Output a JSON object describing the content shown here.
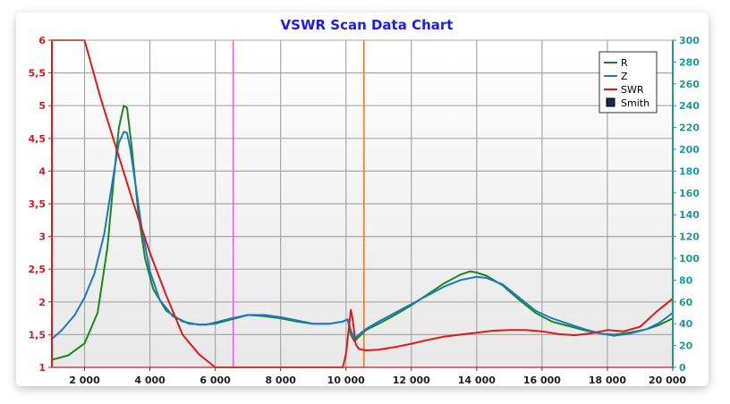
{
  "chart_data": {
    "type": "line",
    "title": "VSWR Scan Data Chart",
    "xlabel": "",
    "ylabel_left": "",
    "ylabel_right": "",
    "xlim": [
      1000,
      20000
    ],
    "ylim_left": [
      1,
      6
    ],
    "ylim_right": [
      0,
      300
    ],
    "grid": true,
    "legend_position": "top-right",
    "x_ticks": [
      2000,
      4000,
      6000,
      8000,
      10000,
      12000,
      14000,
      16000,
      18000,
      20000
    ],
    "x_tick_labels": [
      "2 000",
      "4 000",
      "6 000",
      "8 000",
      "10 000",
      "12 000",
      "14 000",
      "16 000",
      "18 000",
      "20 000"
    ],
    "y_left_ticks": [
      1,
      1.5,
      2,
      2.5,
      3,
      3.5,
      4,
      4.5,
      5,
      5.5,
      6
    ],
    "y_left_tick_labels": [
      "1",
      "1,5",
      "2",
      "2,5",
      "3",
      "3,5",
      "4",
      "4,5",
      "5",
      "5,5",
      "6"
    ],
    "y_right_ticks": [
      0,
      20,
      40,
      60,
      80,
      100,
      120,
      140,
      160,
      180,
      200,
      220,
      240,
      260,
      280,
      300
    ],
    "y_right_tick_labels": [
      "0",
      "20",
      "40",
      "60",
      "80",
      "100",
      "120",
      "140",
      "160",
      "180",
      "200",
      "220",
      "240",
      "260",
      "280",
      "300"
    ],
    "markers": [
      {
        "x": 6550,
        "color": "#e060e0"
      },
      {
        "x": 10550,
        "color": "#f07020"
      }
    ],
    "series": [
      {
        "name": "R",
        "axis": "right",
        "color": "#1a8a1a",
        "x": [
          1000,
          1500,
          2000,
          2400,
          2700,
          2900,
          3050,
          3200,
          3300,
          3450,
          3650,
          3850,
          4100,
          4500,
          5000,
          5500,
          6000,
          6500,
          7000,
          7500,
          8000,
          8500,
          9000,
          9500,
          9900,
          10050,
          10150,
          10250,
          10400,
          10600,
          11000,
          11500,
          12000,
          12500,
          13000,
          13500,
          13800,
          14000,
          14300,
          14800,
          15300,
          15800,
          16300,
          16800,
          17300,
          17800,
          18200,
          18700,
          19200,
          19600,
          20000
        ],
        "values": [
          7,
          11,
          22,
          50,
          110,
          175,
          220,
          240,
          238,
          200,
          140,
          100,
          72,
          52,
          42,
          39,
          40,
          44,
          48,
          47,
          45,
          42,
          40,
          40,
          42,
          44,
          30,
          24,
          28,
          34,
          40,
          48,
          57,
          67,
          77,
          85,
          88,
          87,
          84,
          75,
          62,
          50,
          42,
          38,
          34,
          31,
          30,
          32,
          35,
          39,
          45
        ]
      },
      {
        "name": "Z",
        "axis": "right",
        "color": "#1a78d0",
        "x": [
          1000,
          1300,
          1700,
          2000,
          2300,
          2600,
          2850,
          3050,
          3200,
          3300,
          3400,
          3550,
          3750,
          4000,
          4300,
          4700,
          5200,
          5700,
          6100,
          6500,
          7000,
          7500,
          8000,
          8500,
          9000,
          9500,
          9900,
          10050,
          10150,
          10250,
          10400,
          10600,
          11000,
          11500,
          12000,
          12500,
          13000,
          13500,
          14000,
          14300,
          14800,
          15300,
          15800,
          16300,
          16800,
          17300,
          17800,
          18200,
          18700,
          19200,
          19600,
          20000
        ],
        "values": [
          26,
          34,
          48,
          64,
          86,
          122,
          170,
          206,
          216,
          215,
          200,
          170,
          128,
          88,
          62,
          47,
          40,
          39,
          42,
          45,
          48,
          48,
          46,
          43,
          40,
          40,
          42,
          44,
          34,
          26,
          30,
          35,
          42,
          50,
          58,
          66,
          74,
          80,
          83,
          82,
          76,
          64,
          52,
          45,
          40,
          35,
          31,
          29,
          31,
          35,
          41,
          50
        ]
      },
      {
        "name": "SWR",
        "axis": "left",
        "color": "#e01818",
        "x": [
          1000,
          1001,
          2000,
          2500,
          3000,
          3500,
          4000,
          4500,
          5000,
          5500,
          6000,
          6500,
          7000,
          7500,
          8000,
          8500,
          9000,
          9500,
          9900,
          10000,
          10100,
          10150,
          10200,
          10300,
          10400,
          10600,
          11000,
          11500,
          12000,
          12500,
          13000,
          13500,
          14000,
          14500,
          15000,
          15500,
          16000,
          16500,
          17000,
          17500,
          18000,
          18500,
          19000,
          19500,
          20000
        ],
        "values": [
          1,
          6,
          6,
          5.1,
          4.3,
          3.5,
          2.75,
          2.1,
          1.5,
          1.2,
          1.0,
          1.0,
          1.0,
          1.0,
          1.0,
          1.0,
          1.0,
          1.0,
          1.0,
          1.2,
          1.65,
          1.88,
          1.75,
          1.35,
          1.28,
          1.26,
          1.27,
          1.31,
          1.36,
          1.42,
          1.47,
          1.5,
          1.53,
          1.56,
          1.57,
          1.57,
          1.55,
          1.51,
          1.49,
          1.52,
          1.57,
          1.55,
          1.62,
          1.85,
          2.05
        ]
      },
      {
        "name": "Smith",
        "axis": "left",
        "color": "#1a2a5a",
        "x": [],
        "values": []
      }
    ]
  }
}
